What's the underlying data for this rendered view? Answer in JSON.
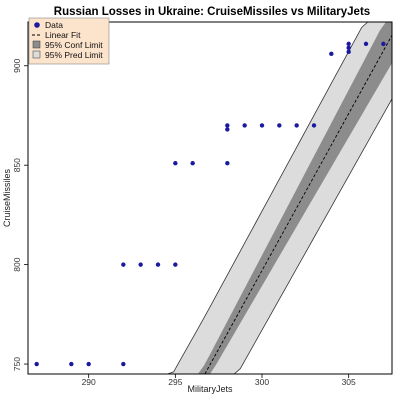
{
  "chart_data": {
    "type": "scatter",
    "title": "Russian Losses in Ukraine: CruiseMissiles vs MilitaryJets",
    "xlabel": "MilitaryJets",
    "ylabel": "CruiseMissiles",
    "xlim": [
      286.5,
      307.5
    ],
    "ylim": [
      745,
      922
    ],
    "xticks": [
      290,
      295,
      300,
      305
    ],
    "yticks": [
      750,
      800,
      850,
      900
    ],
    "grid": false,
    "legend_position": "top-left",
    "legend": [
      "Data",
      "Linear Fit",
      "95% Conf Limit",
      "95% Pred Limit"
    ],
    "colors": {
      "points": "#1a1aa0",
      "fit_line": "#000000",
      "conf_band": "#8c8c8c",
      "pred_band": "#dcdcdc",
      "legend_bg": "#fbe3cc"
    },
    "fit": {
      "intercept": -3937,
      "slope": 15.78
    },
    "conf_half_width": [
      [
        286.5,
        14
      ],
      [
        296.75,
        5
      ],
      [
        307.5,
        14
      ]
    ],
    "pred_half_width": [
      [
        286.5,
        32
      ],
      [
        296.75,
        29
      ],
      [
        307.5,
        32
      ]
    ],
    "series": [
      {
        "name": "Data",
        "x": [
          287,
          289,
          290,
          292,
          292,
          293,
          294,
          295,
          295,
          296,
          298,
          298,
          298,
          299,
          300,
          301,
          302,
          303,
          304,
          305,
          305,
          305,
          306,
          307
        ],
        "y": [
          750,
          750,
          750,
          750,
          800,
          800,
          800,
          800,
          851,
          851,
          851,
          868,
          870,
          870,
          870,
          870,
          870,
          870,
          906,
          907,
          909,
          911,
          911,
          911
        ]
      }
    ]
  }
}
